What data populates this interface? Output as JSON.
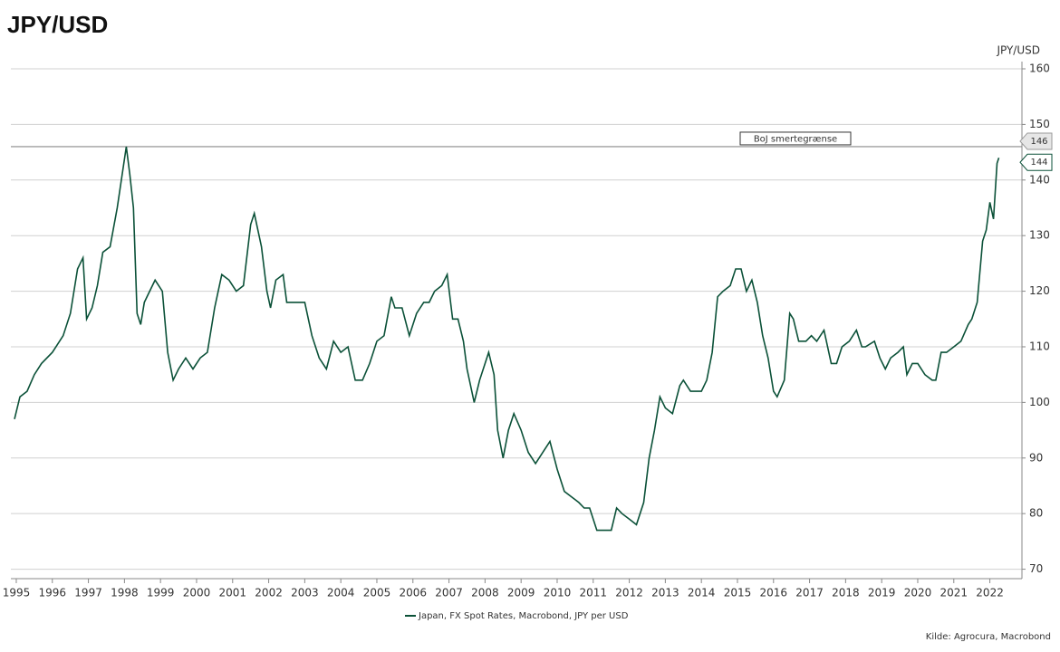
{
  "chart_data": {
    "type": "line",
    "title": "JPY/USD",
    "y_axis_label": "JPY/USD",
    "x": [
      1995.45,
      1995.6,
      1995.8,
      1996.0,
      1996.2,
      1996.5,
      1996.8,
      1997.0,
      1997.2,
      1997.35,
      1997.45,
      1997.6,
      1997.75,
      1997.9,
      1998.1,
      1998.3,
      1998.55,
      1998.65,
      1998.75,
      1998.85,
      1998.95,
      1999.05,
      1999.2,
      1999.35,
      1999.55,
      1999.7,
      1999.85,
      2000.0,
      2000.2,
      2000.4,
      2000.6,
      2000.8,
      2001.0,
      2001.2,
      2001.4,
      2001.6,
      2001.8,
      2002.0,
      2002.1,
      2002.3,
      2002.45,
      2002.55,
      2002.7,
      2002.9,
      2003.0,
      2003.3,
      2003.5,
      2003.7,
      2003.9,
      2004.1,
      2004.3,
      2004.5,
      2004.7,
      2004.9,
      2005.1,
      2005.3,
      2005.5,
      2005.7,
      2005.9,
      2006.0,
      2006.2,
      2006.4,
      2006.6,
      2006.8,
      2006.95,
      2007.1,
      2007.3,
      2007.45,
      2007.6,
      2007.75,
      2007.9,
      2008.0,
      2008.2,
      2008.35,
      2008.5,
      2008.6,
      2008.75,
      2008.85,
      2009.0,
      2009.15,
      2009.3,
      2009.5,
      2009.7,
      2009.9,
      2010.1,
      2010.3,
      2010.5,
      2010.7,
      2010.9,
      2011.1,
      2011.25,
      2011.4,
      2011.6,
      2011.8,
      2012.0,
      2012.15,
      2012.3,
      2012.5,
      2012.7,
      2012.9,
      2013.05,
      2013.2,
      2013.35,
      2013.5,
      2013.7,
      2013.9,
      2014.0,
      2014.2,
      2014.5,
      2014.65,
      2014.8,
      2014.95,
      2015.1,
      2015.3,
      2015.45,
      2015.6,
      2015.75,
      2015.9,
      2016.05,
      2016.2,
      2016.35,
      2016.5,
      2016.6,
      2016.8,
      2016.95,
      2017.05,
      2017.2,
      2017.4,
      2017.55,
      2017.7,
      2017.9,
      2018.1,
      2018.25,
      2018.4,
      2018.6,
      2018.8,
      2018.95,
      2019.05,
      2019.3,
      2019.45,
      2019.6,
      2019.75,
      2019.95,
      2020.1,
      2020.2,
      2020.35,
      2020.5,
      2020.7,
      2020.9,
      2021.0,
      2021.15,
      2021.3,
      2021.5,
      2021.7,
      2021.9,
      2022.0,
      2022.15,
      2022.3,
      2022.4,
      2022.5,
      2022.6,
      2022.7,
      2022.75
    ],
    "series": [
      {
        "name": "Japan, FX Spot Rates, Macrobond, JPY per USD",
        "color": "#0b5138",
        "values": [
          97,
          101,
          102,
          105,
          107,
          109,
          112,
          116,
          124,
          126,
          115,
          117,
          121,
          127,
          128,
          135,
          146,
          141,
          135,
          116,
          114,
          118,
          120,
          122,
          120,
          109,
          104,
          106,
          108,
          106,
          108,
          109,
          117,
          123,
          122,
          120,
          121,
          132,
          134,
          128,
          120,
          117,
          122,
          123,
          118,
          118,
          118,
          112,
          108,
          106,
          111,
          109,
          110,
          104,
          104,
          107,
          111,
          112,
          119,
          117,
          117,
          112,
          116,
          118,
          118,
          120,
          121,
          123,
          115,
          115,
          111,
          106,
          100,
          104,
          107,
          109,
          105,
          95,
          90,
          95,
          98,
          95,
          91,
          89,
          91,
          93,
          88,
          84,
          83,
          82,
          81,
          81,
          77,
          77,
          77,
          81,
          80,
          79,
          78,
          82,
          90,
          95,
          101,
          99,
          98,
          103,
          104,
          102,
          102,
          104,
          109,
          119,
          120,
          121,
          124,
          124,
          120,
          122,
          118,
          112,
          108,
          102,
          101,
          104,
          116,
          115,
          111,
          111,
          112,
          111,
          113,
          107,
          107,
          110,
          111,
          113,
          110,
          110,
          111,
          108,
          106,
          108,
          109,
          110,
          105,
          107,
          107,
          105,
          104,
          104,
          109,
          109,
          110,
          111,
          114,
          115,
          118,
          129,
          131,
          136,
          133,
          143,
          144
        ]
      }
    ],
    "xlim": [
      1995.35,
      2023.39
    ],
    "xticks": [
      {
        "value": 1995.5,
        "label": "1995"
      },
      {
        "value": 1996.5,
        "label": "1996"
      },
      {
        "value": 1997.5,
        "label": "1997"
      },
      {
        "value": 1998.5,
        "label": "1998"
      },
      {
        "value": 1999.5,
        "label": "1999"
      },
      {
        "value": 2000.5,
        "label": "2000"
      },
      {
        "value": 2001.5,
        "label": "2001"
      },
      {
        "value": 2002.5,
        "label": "2002"
      },
      {
        "value": 2003.5,
        "label": "2003"
      },
      {
        "value": 2004.5,
        "label": "2004"
      },
      {
        "value": 2005.5,
        "label": "2005"
      },
      {
        "value": 2006.5,
        "label": "2006"
      },
      {
        "value": 2007.5,
        "label": "2007"
      },
      {
        "value": 2008.5,
        "label": "2008"
      },
      {
        "value": 2009.5,
        "label": "2009"
      },
      {
        "value": 2010.5,
        "label": "2010"
      },
      {
        "value": 2011.5,
        "label": "2011"
      },
      {
        "value": 2012.5,
        "label": "2012"
      },
      {
        "value": 2013.5,
        "label": "2013"
      },
      {
        "value": 2014.5,
        "label": "2014"
      },
      {
        "value": 2015.5,
        "label": "2015"
      },
      {
        "value": 2016.5,
        "label": "2016"
      },
      {
        "value": 2017.5,
        "label": "2017"
      },
      {
        "value": 2018.5,
        "label": "2018"
      },
      {
        "value": 2019.5,
        "label": "2019"
      },
      {
        "value": 2020.5,
        "label": "2020"
      },
      {
        "value": 2021.5,
        "label": "2021"
      },
      {
        "value": 2022.5,
        "label": "2022"
      }
    ],
    "ylim": [
      68.3,
      160
    ],
    "yticks": [
      70,
      80,
      90,
      100,
      110,
      120,
      130,
      140,
      150,
      160
    ],
    "grid": true,
    "hline": {
      "text": "BoJ smertegrænse",
      "value": 146,
      "color": "#8a8a8a"
    },
    "axis_markers": [
      {
        "value": 146,
        "color": "#9a9a9a"
      },
      {
        "value": 144,
        "color": "#0b5138"
      }
    ],
    "legend": "bottom",
    "source": "Kilde: Agrocura, Macrobond"
  }
}
